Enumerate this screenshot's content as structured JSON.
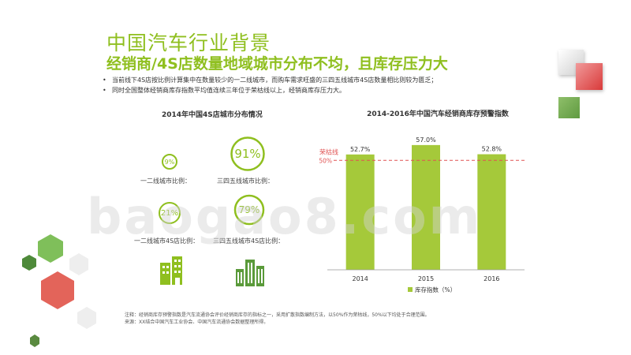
{
  "title": "中国汽车行业背景",
  "subtitle": "经销商/4S店数量地域城市分布不均，且库存压力大",
  "bullets": [
    "当前线下4S店按比例计算集中在数量较少的一二线城市，而购车需求旺盛的三四五线城市4S店数量相比则较为匮乏；",
    "同时全国整体经销商库存指数平均值连续三年位于荣枯线以上，经销商库存压力大。"
  ],
  "left_panel": {
    "title": "2014年中国4S店城市分布情况",
    "rings": [
      {
        "value": "9%",
        "label": "一二线城市比例："
      },
      {
        "value": "91%",
        "label": "三四五线城市比例："
      },
      {
        "value": "21%",
        "label": "一二线城市4S店比例："
      },
      {
        "value": "79%",
        "label": "三四五线城市4S店比例："
      }
    ],
    "icons": [
      "building-small-icon",
      "building-large-icon"
    ]
  },
  "watermark": "baogao8.com",
  "footnote": {
    "line1": "注释：经销商库存预警指数是汽车流通协会评价经销商库存的指标之一，采用扩散指数编制方法，以50%作为荣枯线，50%以下均处于合理范围。",
    "line2": "来源：XX结合中国汽车工业协会、中国汽车流通协会数据整理所得。"
  },
  "colors": {
    "accent": "#8fbf1f",
    "bar": "#a5c93a",
    "threshold": "#e05252"
  },
  "chart_data": {
    "type": "bar",
    "title": "2014-2016年中国汽车经销商库存预警指数",
    "categories": [
      "2014",
      "2015",
      "2016"
    ],
    "series": [
      {
        "name": "库存指数（%）",
        "values": [
          52.7,
          57.0,
          52.8
        ]
      }
    ],
    "value_labels": [
      "52.7%",
      "57.0%",
      "52.8%"
    ],
    "threshold": {
      "value": 50,
      "label": "荣枯线",
      "tick_label": "50%"
    },
    "ylim": [
      0,
      62
    ],
    "legend": "bottom"
  }
}
